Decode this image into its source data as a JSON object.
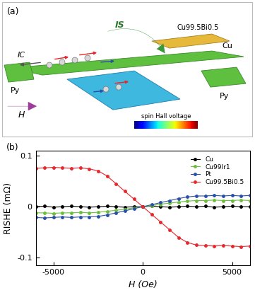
{
  "diagram": {
    "panel_label": "(a)",
    "labels": {
      "spin_current": "IS",
      "charge_current": "IC",
      "field": "H",
      "channel": "Cu",
      "absorber": "Cu99.5Bi0.5",
      "ferromagnet_left": "Py",
      "ferromagnet_right": "Py",
      "colorbar": "spin Hall voltage"
    }
  },
  "chart_data": {
    "type": "line",
    "annotations": [
      "(b)"
    ],
    "x_label": "H (Oe)",
    "y_label": "RISHE (mΩ)",
    "x": [
      -6000,
      -5500,
      -5000,
      -4500,
      -4000,
      -3500,
      -3000,
      -2500,
      -2000,
      -1500,
      -1000,
      -500,
      0,
      500,
      1000,
      1500,
      2000,
      2500,
      3000,
      3500,
      4000,
      4500,
      5000,
      5500,
      6000
    ],
    "series": [
      {
        "name": "Cu",
        "color": "#000000",
        "marker": "o",
        "line_style": "solid",
        "values": [
          0.0,
          0.001,
          -0.001,
          0.0,
          0.001,
          0.0,
          -0.001,
          0.0,
          0.001,
          0.0,
          -0.001,
          0.0,
          0.0,
          0.001,
          0.0,
          -0.001,
          0.0,
          0.001,
          0.0,
          0.001,
          -0.001,
          0.0,
          0.001,
          0.0,
          0.0
        ]
      },
      {
        "name": "Cu99Ir1",
        "color": "#6cbf3c",
        "marker": "o",
        "line_style": "solid",
        "values": [
          -0.012,
          -0.012,
          -0.013,
          -0.012,
          -0.012,
          -0.011,
          -0.012,
          -0.011,
          -0.009,
          -0.007,
          -0.005,
          -0.002,
          0.0,
          0.002,
          0.005,
          0.007,
          0.009,
          0.011,
          0.012,
          0.012,
          0.013,
          0.012,
          0.012,
          0.013,
          0.012
        ]
      },
      {
        "name": "Pt",
        "color": "#2a4fa8",
        "marker": "o",
        "line_style": "solid",
        "values": [
          -0.021,
          -0.022,
          -0.021,
          -0.02,
          -0.021,
          -0.02,
          -0.02,
          -0.019,
          -0.016,
          -0.012,
          -0.008,
          -0.004,
          0.0,
          0.004,
          0.008,
          0.012,
          0.016,
          0.019,
          0.021,
          0.021,
          0.022,
          0.021,
          0.022,
          0.021,
          0.022
        ]
      },
      {
        "name": "Cu99.5Bi0.5",
        "color": "#e8262b",
        "marker": "o",
        "line_style": "solid",
        "values": [
          0.075,
          0.076,
          0.077,
          0.076,
          0.075,
          0.076,
          0.074,
          0.07,
          0.06,
          0.045,
          0.03,
          0.015,
          0.0,
          -0.015,
          -0.03,
          -0.045,
          -0.06,
          -0.07,
          -0.075,
          -0.076,
          -0.077,
          -0.076,
          -0.077,
          -0.078,
          -0.077
        ]
      }
    ],
    "xlim": [
      -6000,
      6000
    ],
    "xticks": [
      -5000,
      0,
      5000
    ],
    "ylim": [
      -0.115,
      0.11
    ],
    "yticks": [
      -0.1,
      0,
      0.1
    ],
    "legend": "upper right",
    "grid": false
  }
}
